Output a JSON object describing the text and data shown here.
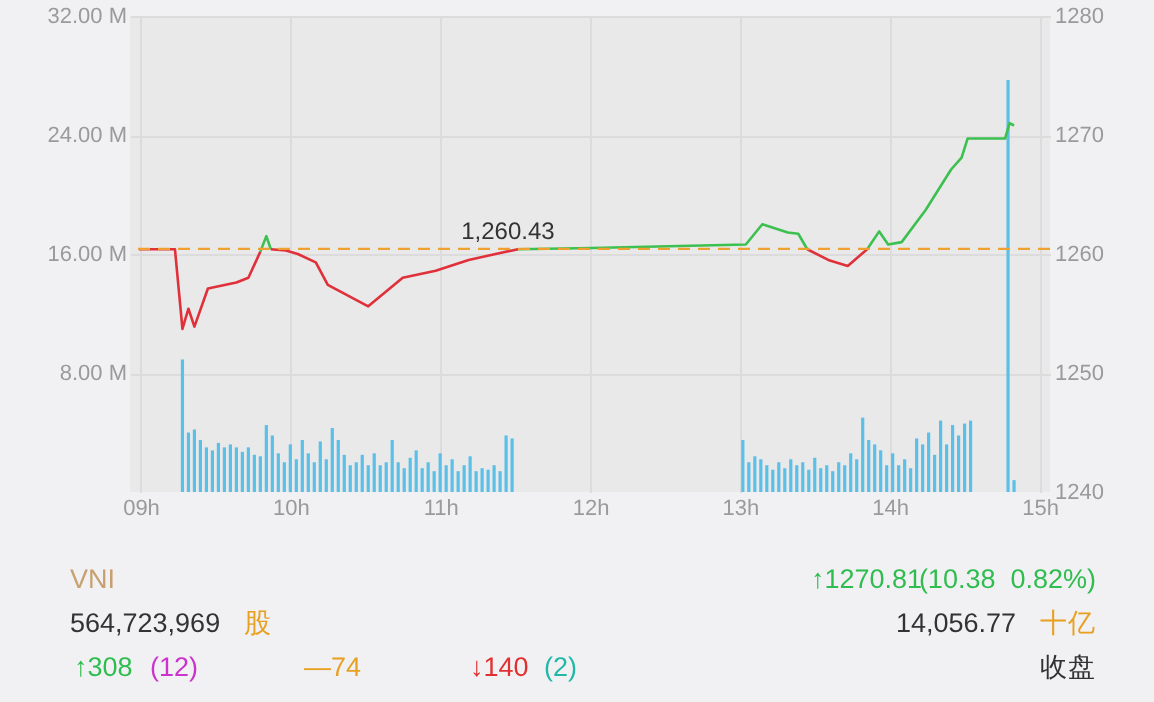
{
  "chart_data": {
    "type": "line",
    "xlim": [
      8.93,
      15.07
    ],
    "xticks": [
      {
        "value": 9,
        "label": "09h"
      },
      {
        "value": 10,
        "label": "10h"
      },
      {
        "value": 11,
        "label": "11h"
      },
      {
        "value": 12,
        "label": "12h"
      },
      {
        "value": 13,
        "label": "13h"
      },
      {
        "value": 14,
        "label": "14h"
      },
      {
        "value": 15,
        "label": "15h"
      }
    ],
    "ylim": [
      0,
      32
    ],
    "yticks": [
      {
        "value": 8,
        "label": "8.00 M"
      },
      {
        "value": 16,
        "label": "16.00 M"
      },
      {
        "value": 24,
        "label": "24.00 M"
      },
      {
        "value": 32,
        "label": "32.00 M"
      }
    ],
    "y2lim": [
      1240,
      1280
    ],
    "y2ticks": [
      1240,
      1250,
      1260,
      1270,
      1280
    ],
    "grid": true,
    "series": [
      {
        "type": "bar",
        "axis": "y",
        "color": "#5bc0e8",
        "x": [
          9.28,
          9.32,
          9.36,
          9.4,
          9.44,
          9.48,
          9.52,
          9.56,
          9.6,
          9.64,
          9.68,
          9.72,
          9.76,
          9.8,
          9.84,
          9.88,
          9.92,
          9.96,
          10.0,
          10.04,
          10.08,
          10.12,
          10.16,
          10.2,
          10.24,
          10.28,
          10.32,
          10.36,
          10.4,
          10.44,
          10.48,
          10.52,
          10.56,
          10.6,
          10.64,
          10.68,
          10.72,
          10.76,
          10.8,
          10.84,
          10.88,
          10.92,
          10.96,
          11.0,
          11.04,
          11.08,
          11.12,
          11.16,
          11.2,
          11.24,
          11.28,
          11.32,
          11.36,
          11.4,
          11.44,
          11.48,
          13.02,
          13.06,
          13.1,
          13.14,
          13.18,
          13.22,
          13.26,
          13.3,
          13.34,
          13.38,
          13.42,
          13.46,
          13.5,
          13.54,
          13.58,
          13.62,
          13.66,
          13.7,
          13.74,
          13.78,
          13.82,
          13.86,
          13.9,
          13.94,
          13.98,
          14.02,
          14.06,
          14.1,
          14.14,
          14.18,
          14.22,
          14.26,
          14.3,
          14.34,
          14.38,
          14.42,
          14.46,
          14.5,
          14.54,
          14.79,
          14.83
        ],
        "values": [
          8.9,
          4.0,
          4.2,
          3.5,
          3.0,
          2.8,
          3.3,
          3.0,
          3.2,
          3.0,
          2.7,
          3.0,
          2.5,
          2.4,
          4.5,
          3.8,
          2.6,
          2.0,
          3.2,
          2.2,
          3.5,
          2.6,
          2.0,
          3.4,
          2.2,
          4.3,
          3.5,
          2.5,
          1.8,
          2.0,
          2.5,
          1.8,
          2.6,
          1.8,
          2.0,
          3.5,
          2.0,
          1.6,
          2.3,
          2.8,
          1.6,
          2.0,
          1.4,
          2.6,
          1.8,
          2.2,
          1.4,
          1.8,
          2.4,
          1.4,
          1.6,
          1.5,
          1.8,
          1.4,
          3.8,
          3.6,
          3.5,
          2.0,
          2.4,
          2.2,
          1.8,
          1.5,
          2.0,
          1.6,
          2.2,
          1.8,
          2.0,
          1.5,
          2.3,
          1.6,
          1.8,
          1.4,
          2.0,
          1.8,
          2.6,
          2.2,
          5.0,
          3.5,
          3.2,
          2.8,
          1.8,
          2.6,
          1.8,
          2.2,
          1.6,
          3.6,
          3.2,
          4.0,
          2.5,
          4.8,
          3.2,
          4.5,
          3.8,
          4.6,
          4.8,
          27.7,
          0.8
        ]
      },
      {
        "axis": "y2",
        "color": "#e0303a",
        "x": [
          8.99,
          9.23,
          9.28,
          9.32,
          9.36,
          9.45,
          9.64,
          9.72,
          9.8
        ],
        "values": [
          1260.4,
          1260.4,
          1253.7,
          1255.4,
          1253.9,
          1257.1,
          1257.6,
          1258.0,
          1260.2
        ]
      },
      {
        "type": "line",
        "axis": "y2",
        "color": "#3cc050",
        "x": [
          9.8,
          9.84,
          9.87
        ],
        "values": [
          1260.2,
          1261.5,
          1260.4
        ]
      },
      {
        "type": "line",
        "axis": "y2",
        "color": "#e0303a",
        "x": [
          9.87,
          9.97,
          10.05,
          10.17,
          10.25,
          10.52,
          10.75,
          10.97,
          11.19,
          11.37,
          11.52
        ],
        "values": [
          1260.4,
          1260.3,
          1260.0,
          1259.3,
          1257.4,
          1255.6,
          1258.0,
          1258.6,
          1259.5,
          1260.0,
          1260.4
        ]
      },
      {
        "type": "line",
        "axis": "y2",
        "color": "#3cc050",
        "x": [
          11.52,
          12.01,
          13.04,
          13.15,
          13.32,
          13.39,
          13.45
        ],
        "values": [
          1260.4,
          1260.5,
          1260.8,
          1262.5,
          1261.8,
          1261.7,
          1260.4
        ]
      },
      {
        "type": "line",
        "axis": "y2",
        "color": "#e0303a",
        "x": [
          13.45,
          13.59,
          13.72,
          13.85
        ],
        "values": [
          1260.4,
          1259.5,
          1259.0,
          1260.4
        ]
      },
      {
        "type": "line",
        "axis": "y2",
        "color": "#3cc050",
        "x": [
          13.85,
          13.93,
          13.99,
          14.08,
          14.24,
          14.41,
          14.48,
          14.52,
          14.77,
          14.8,
          14.83
        ],
        "values": [
          1260.4,
          1261.9,
          1260.8,
          1261.0,
          1263.7,
          1267.1,
          1268.1,
          1269.7,
          1269.7,
          1271.0,
          1270.8
        ]
      }
    ],
    "ref_lines": [
      {
        "axis": "y2",
        "value": 1260.43,
        "label": "1,260.43",
        "color": "#f0a030",
        "line_style": "dashed"
      }
    ],
    "annotations": [
      "VNI",
      "↑1270.81",
      "(10.38  0.82%)",
      "564,723,969",
      "股",
      "14,056.77",
      "十亿",
      "↑308",
      "(12)",
      "—74",
      "↓140",
      "(2)",
      "收盘"
    ]
  }
}
